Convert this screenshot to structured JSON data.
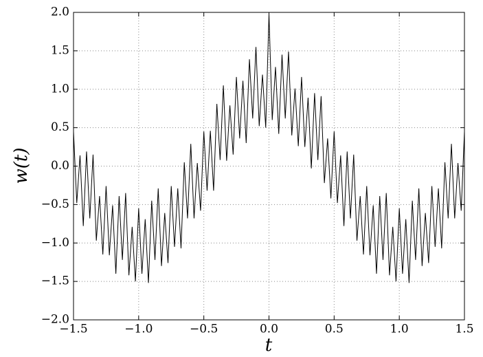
{
  "chart_data": {
    "type": "line",
    "x_label": "t",
    "y_label": "w(t)",
    "xlim": [
      -1.5,
      1.5
    ],
    "ylim": [
      -2.0,
      2.0
    ],
    "xticks": [
      {
        "value": -1.5,
        "label": "−1.5"
      },
      {
        "value": -1.0,
        "label": "−1.0"
      },
      {
        "value": -0.5,
        "label": "−0.5"
      },
      {
        "value": 0.0,
        "label": "0.0"
      },
      {
        "value": 0.5,
        "label": "0.5"
      },
      {
        "value": 1.0,
        "label": "1.0"
      },
      {
        "value": 1.5,
        "label": "1.5"
      }
    ],
    "yticks": [
      {
        "value": -2.0,
        "label": "−2.0"
      },
      {
        "value": -1.5,
        "label": "−1.5"
      },
      {
        "value": -1.0,
        "label": "−1.0"
      },
      {
        "value": -0.5,
        "label": "−0.5"
      },
      {
        "value": 0.0,
        "label": "0.0"
      },
      {
        "value": 0.5,
        "label": "0.5"
      },
      {
        "value": 1.0,
        "label": "1.0"
      },
      {
        "value": 1.5,
        "label": "1.5"
      },
      {
        "value": 2.0,
        "label": "2.0"
      }
    ],
    "grid": true,
    "x": [
      -1.5,
      -1.475,
      -1.45,
      -1.425,
      -1.4,
      -1.375,
      -1.35,
      -1.325,
      -1.3,
      -1.275,
      -1.25,
      -1.225,
      -1.2,
      -1.175,
      -1.15,
      -1.125,
      -1.1,
      -1.075,
      -1.05,
      -1.025,
      -1.0,
      -0.975,
      -0.95,
      -0.925,
      -0.9,
      -0.875,
      -0.85,
      -0.825,
      -0.8,
      -0.775,
      -0.75,
      -0.725,
      -0.7,
      -0.675,
      -0.65,
      -0.625,
      -0.6,
      -0.575,
      -0.55,
      -0.525,
      -0.5,
      -0.475,
      -0.45,
      -0.425,
      -0.4,
      -0.375,
      -0.35,
      -0.325,
      -0.3,
      -0.275,
      -0.25,
      -0.225,
      -0.2,
      -0.175,
      -0.15,
      -0.125,
      -0.1,
      -0.075,
      -0.05,
      -0.025,
      0.0,
      0.025,
      0.05,
      0.075,
      0.1,
      0.125,
      0.15,
      0.175,
      0.2,
      0.225,
      0.25,
      0.275,
      0.3,
      0.325,
      0.35,
      0.375,
      0.4,
      0.425,
      0.45,
      0.475,
      0.5,
      0.525,
      0.55,
      0.575,
      0.6,
      0.625,
      0.65,
      0.675,
      0.7,
      0.725,
      0.75,
      0.775,
      0.8,
      0.825,
      0.85,
      0.875,
      0.9,
      0.925,
      0.95,
      0.975,
      1.0,
      1.025,
      1.05,
      1.075,
      1.1,
      1.125,
      1.15,
      1.175,
      1.2,
      1.225,
      1.25,
      1.275,
      1.3,
      1.325,
      1.35,
      1.375,
      1.4,
      1.425,
      1.45,
      1.475,
      1.5
    ],
    "series": [
      {
        "color": "#000000",
        "values": [
          0.45,
          -0.48,
          0.14,
          -0.78,
          0.19,
          -0.68,
          0.15,
          -0.97,
          -0.39,
          -1.15,
          -0.26,
          -1.16,
          -0.51,
          -1.4,
          -0.39,
          -1.22,
          -0.35,
          -1.42,
          -0.79,
          -1.5,
          -0.55,
          -1.4,
          -0.69,
          -1.52,
          -0.45,
          -1.22,
          -0.29,
          -1.3,
          -0.61,
          -1.26,
          -0.26,
          -1.05,
          -0.29,
          -1.07,
          0.05,
          -0.68,
          0.29,
          -0.68,
          0.04,
          -0.58,
          0.45,
          -0.32,
          0.46,
          -0.32,
          0.81,
          0.08,
          1.05,
          0.07,
          0.79,
          0.15,
          1.16,
          0.36,
          1.11,
          0.3,
          1.39,
          0.62,
          1.55,
          0.52,
          1.19,
          0.5,
          1.98,
          0.6,
          1.29,
          0.42,
          1.45,
          0.62,
          1.49,
          0.4,
          1.01,
          0.26,
          1.16,
          0.25,
          0.89,
          -0.03,
          0.95,
          0.08,
          0.91,
          -0.22,
          0.36,
          -0.42,
          0.45,
          -0.48,
          0.14,
          -0.78,
          0.19,
          -0.68,
          0.15,
          -0.97,
          -0.39,
          -1.15,
          -0.26,
          -1.16,
          -0.51,
          -1.4,
          -0.39,
          -1.22,
          -0.35,
          -1.42,
          -0.79,
          -1.5,
          -0.55,
          -1.4,
          -0.69,
          -1.52,
          -0.45,
          -1.22,
          -0.29,
          -1.3,
          -0.61,
          -1.26,
          -0.26,
          -1.05,
          -0.29,
          -1.07,
          0.05,
          -0.68,
          0.29,
          -0.68,
          0.04,
          -0.58,
          0.45
        ]
      }
    ]
  }
}
